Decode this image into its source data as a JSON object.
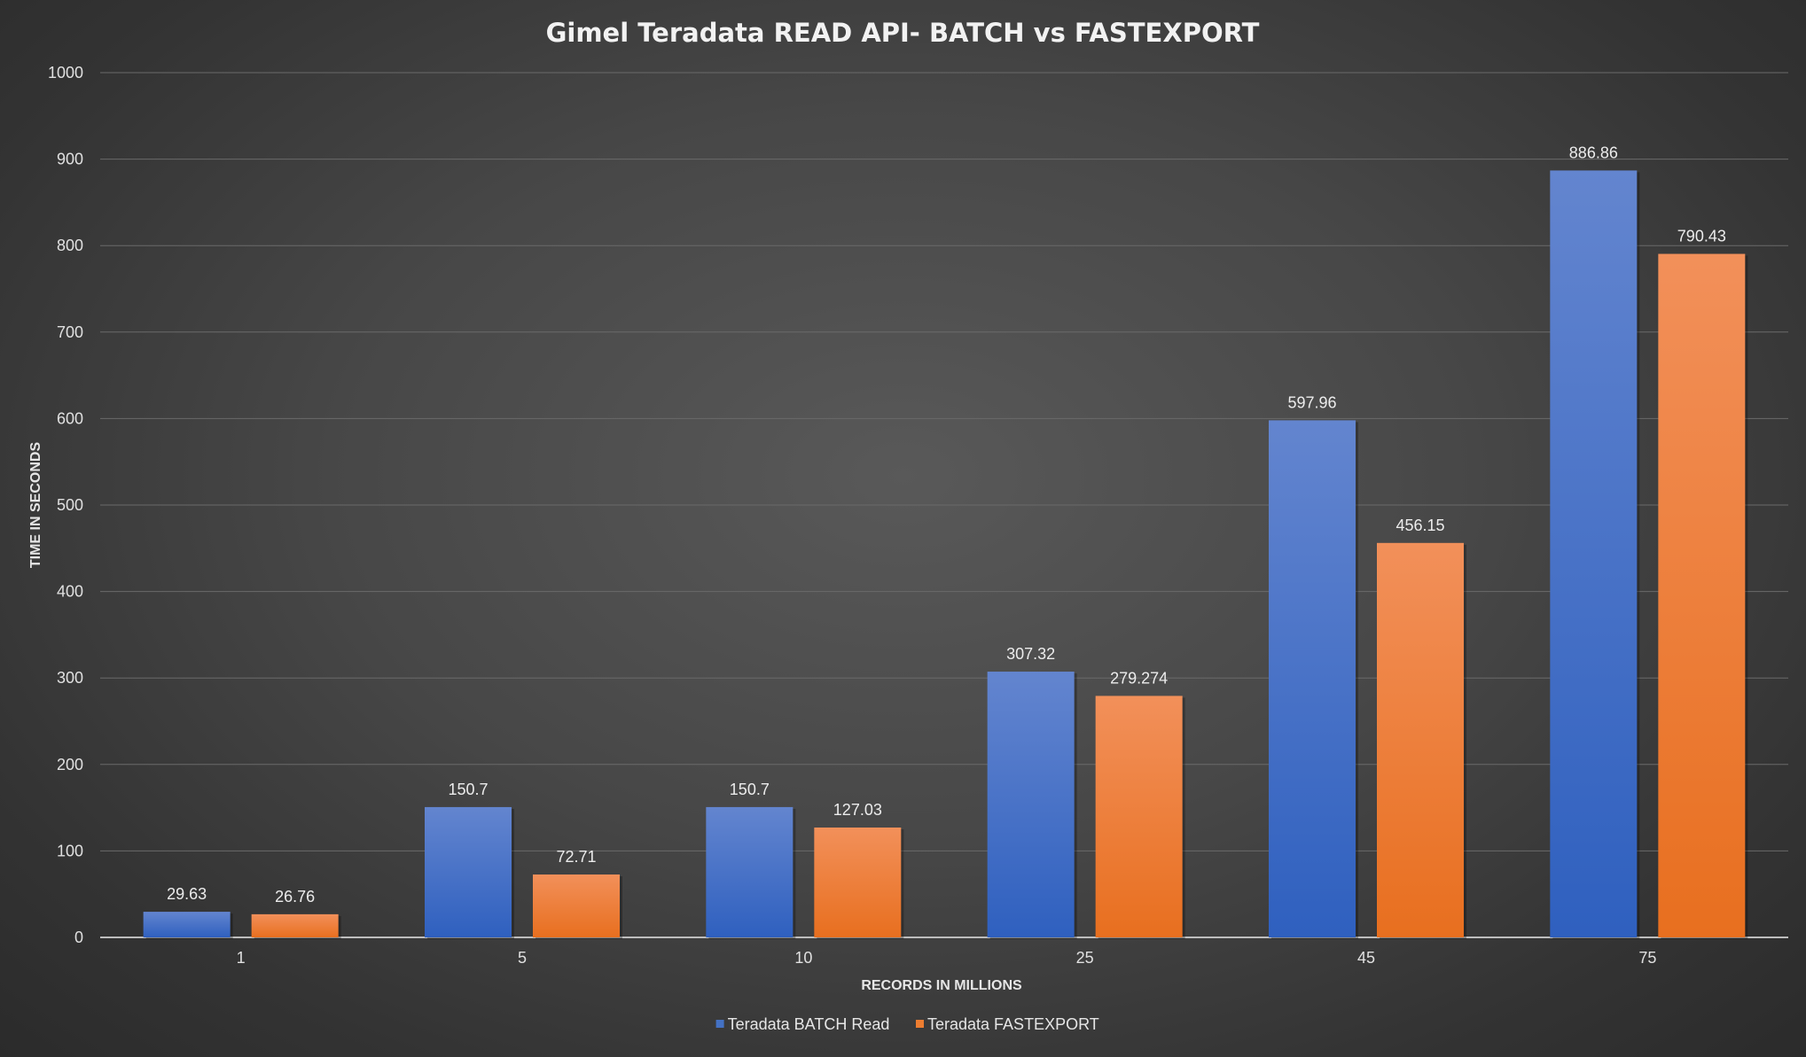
{
  "chart_data": {
    "type": "bar",
    "title": "Gimel Teradata READ API- BATCH vs FASTEXPORT",
    "xlabel": "RECORDS IN MILLIONS",
    "ylabel": "TIME IN SECONDS",
    "categories": [
      "1",
      "5",
      "10",
      "25",
      "45",
      "75"
    ],
    "ylim": [
      0,
      1000
    ],
    "yticks": [
      0,
      100,
      200,
      300,
      400,
      500,
      600,
      700,
      800,
      900,
      1000
    ],
    "grid": true,
    "legend_position": "bottom",
    "series": [
      {
        "name": "Teradata BATCH Read",
        "values": [
          29.63,
          150.7,
          150.7,
          307.32,
          597.96,
          886.86
        ],
        "labels": [
          "29.63",
          "150.7",
          "150.7",
          "307.32",
          "597.96",
          "886.86"
        ],
        "color": "#4472c4"
      },
      {
        "name": "Teradata FASTEXPORT",
        "values": [
          26.76,
          72.71,
          127.03,
          279.274,
          456.15,
          790.43
        ],
        "labels": [
          "26.76",
          "72.71",
          "127.03",
          "279.274",
          "456.15",
          "790.43"
        ],
        "color": "#ed7d31"
      }
    ]
  }
}
